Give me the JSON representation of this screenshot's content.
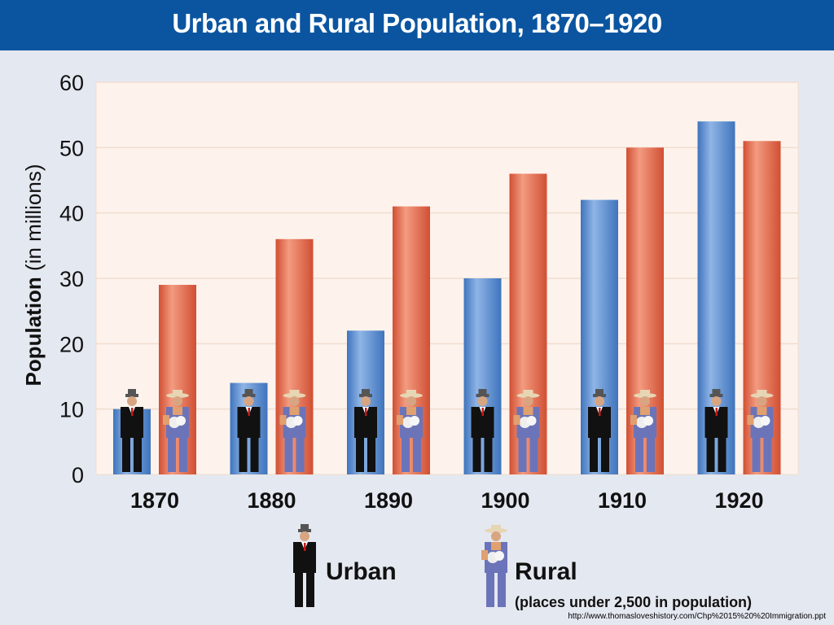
{
  "chart_data": {
    "type": "bar",
    "title": "Urban and Rural Population, 1870–1920",
    "ylabel_bold": "Population",
    "ylabel_rest": " (in millions)",
    "categories": [
      "1870",
      "1880",
      "1890",
      "1900",
      "1910",
      "1920"
    ],
    "series": [
      {
        "name": "Urban",
        "values": [
          10,
          14,
          22,
          30,
          42,
          54
        ]
      },
      {
        "name": "Rural",
        "values": [
          29,
          36,
          41,
          46,
          50,
          51
        ]
      }
    ],
    "ylim": [
      0,
      60
    ],
    "yticks": [
      0,
      10,
      20,
      30,
      40,
      50,
      60
    ],
    "grid": true,
    "legend": {
      "position": "bottom",
      "urban_label": "Urban",
      "rural_label": "Rural",
      "rural_note": "(places under 2,500 in population)"
    }
  },
  "colors": {
    "title_bar": "#0b55a0",
    "urban": "#5b8ed0",
    "rural": "#e06a50",
    "plot_bg": "#fdf3ec",
    "grid": "#f0ddd0"
  },
  "icons": {
    "urban": "businessman-icon",
    "rural": "farmer-icon"
  },
  "credit": "http://www.thomasloveshistory.com/Chp%2015%20%20Immigration.ppt"
}
